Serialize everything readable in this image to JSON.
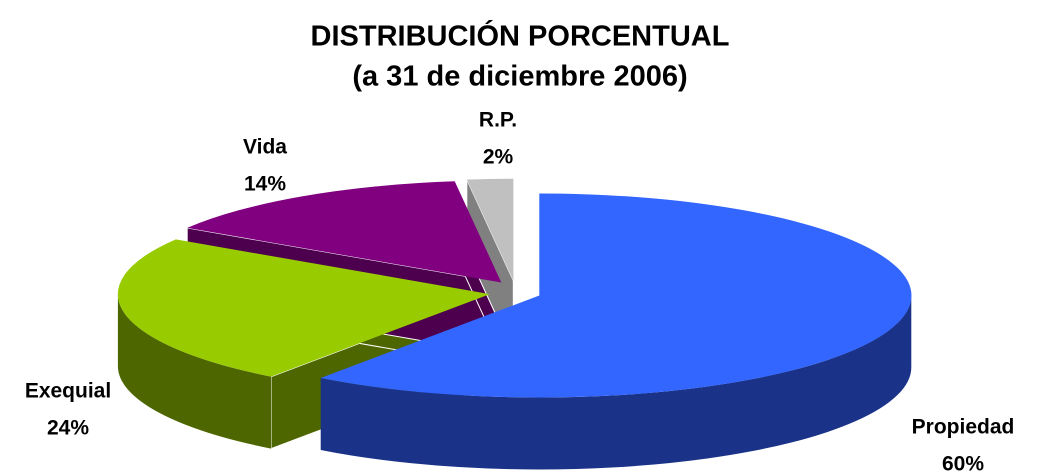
{
  "chart_data": {
    "type": "pie3d",
    "title": "DISTRIBUCIÓN PORCENTUAL",
    "subtitle": "(a 31 de diciembre 2006)",
    "categories": [
      "Propiedad",
      "Exequial",
      "Vida",
      "R.P."
    ],
    "values": [
      60,
      24,
      14,
      2
    ],
    "value_labels": [
      "60%",
      "24%",
      "14%",
      "2%"
    ],
    "colors": [
      "#3366ff",
      "#99cc00",
      "#800080",
      "#c0c0c0"
    ],
    "side_colors": [
      "#1a3388",
      "#4d6600",
      "#4d004d",
      "#808080"
    ]
  }
}
